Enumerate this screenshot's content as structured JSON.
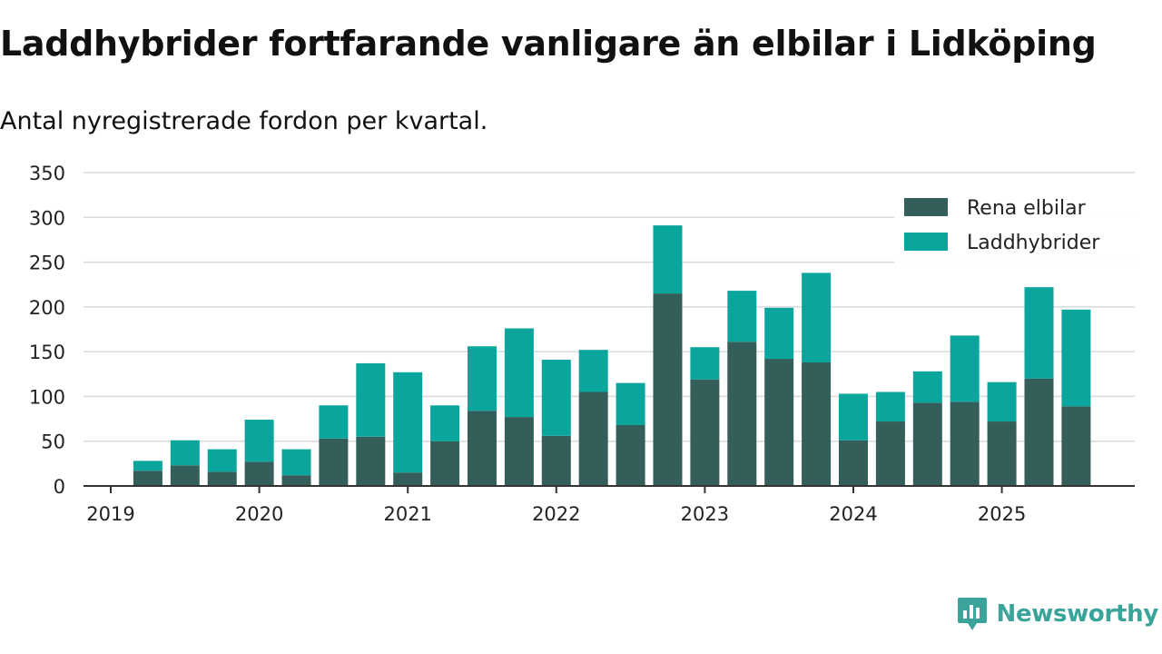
{
  "title": "Laddhybrider fortfarande vanligare än elbilar i Lidköping",
  "subtitle": "Antal nyregistrerade fordon per kvartal.",
  "brand": {
    "name": "Newsworthy"
  },
  "colors": {
    "elbilar": "#335e5a",
    "laddhybrider": "#0aa59c",
    "grid": "#d9d9d9",
    "axis": "#333333"
  },
  "chart_data": {
    "type": "bar",
    "stacked": true,
    "title": "Laddhybrider fortfarande vanligare än elbilar i Lidköping",
    "subtitle": "Antal nyregistrerade fordon per kvartal.",
    "xlabel": "",
    "ylabel": "",
    "ylim": [
      0,
      350
    ],
    "yticks": [
      0,
      50,
      100,
      150,
      200,
      250,
      300,
      350
    ],
    "xticks": [
      "2019",
      "2020",
      "2021",
      "2022",
      "2023",
      "2024",
      "2025"
    ],
    "x_start": "2019-Q1",
    "grid": true,
    "legend_position": "top-right",
    "categories": [
      "2019-Q2",
      "2019-Q3",
      "2019-Q4",
      "2020-Q1",
      "2020-Q2",
      "2020-Q3",
      "2020-Q4",
      "2021-Q1",
      "2021-Q2",
      "2021-Q3",
      "2021-Q4",
      "2022-Q1",
      "2022-Q2",
      "2022-Q3",
      "2022-Q4",
      "2023-Q1",
      "2023-Q2",
      "2023-Q3",
      "2023-Q4",
      "2024-Q1",
      "2024-Q2",
      "2024-Q3",
      "2024-Q4",
      "2025-Q1",
      "2025-Q2",
      "2025-Q3"
    ],
    "series": [
      {
        "name": "Rena elbilar",
        "color": "#335e5a",
        "values": [
          17,
          23,
          16,
          27,
          12,
          53,
          55,
          15,
          50,
          84,
          77,
          56,
          105,
          68,
          215,
          119,
          161,
          142,
          138,
          51,
          72,
          93,
          94,
          72,
          120,
          89
        ]
      },
      {
        "name": "Laddhybrider",
        "color": "#0aa59c",
        "values": [
          11,
          28,
          25,
          47,
          29,
          37,
          82,
          112,
          40,
          72,
          99,
          85,
          47,
          47,
          76,
          36,
          57,
          57,
          100,
          52,
          33,
          35,
          74,
          44,
          102,
          108
        ]
      }
    ]
  }
}
